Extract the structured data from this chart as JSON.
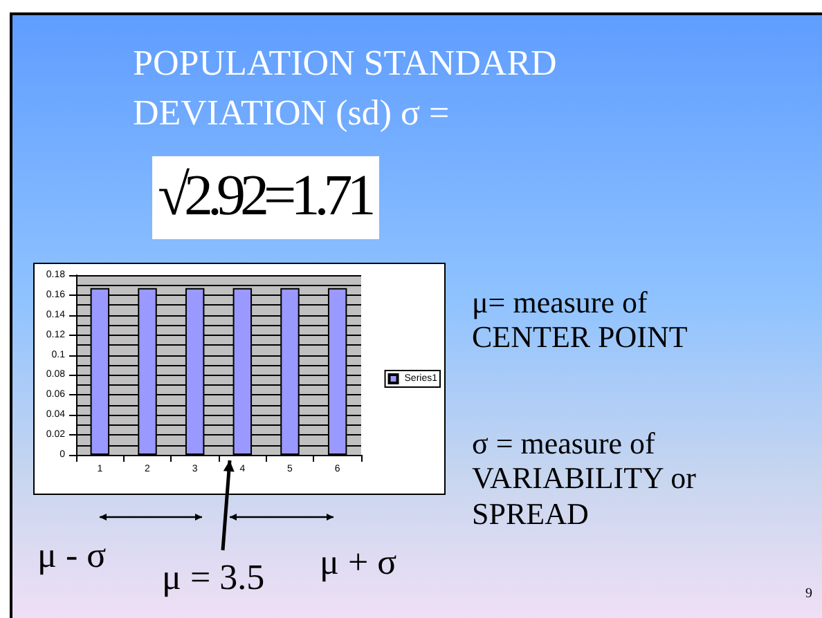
{
  "chart_data": {
    "type": "bar",
    "title": "POPULATION STANDARD\nDEVIATION (sd) σ =",
    "categories": [
      "1",
      "2",
      "3",
      "4",
      "5",
      "6"
    ],
    "series": [
      {
        "name": "Series1",
        "color": "#9999ff",
        "values": [
          0.167,
          0.167,
          0.167,
          0.167,
          0.167,
          0.167
        ]
      }
    ],
    "ylim": [
      0,
      0.18
    ],
    "yticks": [
      0,
      0.02,
      0.04,
      0.06,
      0.08,
      0.1,
      0.12,
      0.14,
      0.16,
      0.18
    ],
    "grid": "y",
    "legend": "right",
    "annotations": [
      "√2.92=1.71",
      "μ= measure of\nCENTER POINT",
      "σ = measure of\nVARIABILITY or\nSPREAD",
      "μ - σ",
      "μ = 3.5",
      "μ + σ",
      "9"
    ]
  }
}
